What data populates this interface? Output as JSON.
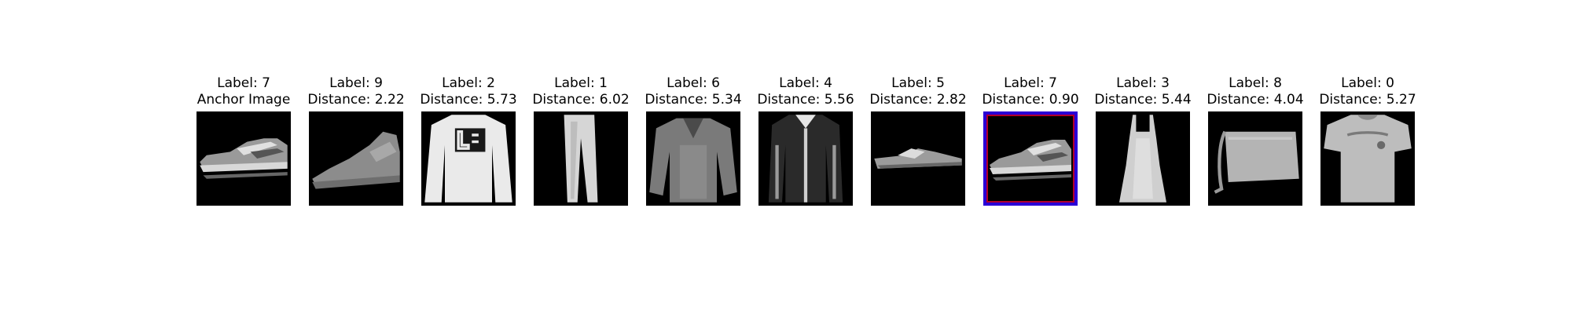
{
  "figure": {
    "panels": [
      {
        "label_text": "Label: 7",
        "sub_text": "Anchor Image",
        "icon": "sneaker-icon",
        "highlighted": false
      },
      {
        "label_text": "Label: 9",
        "sub_text": "Distance: 2.22",
        "icon": "ankle-boot-icon",
        "highlighted": false
      },
      {
        "label_text": "Label: 2",
        "sub_text": "Distance: 5.73",
        "icon": "pullover-icon",
        "highlighted": false
      },
      {
        "label_text": "Label: 1",
        "sub_text": "Distance: 6.02",
        "icon": "trouser-icon",
        "highlighted": false
      },
      {
        "label_text": "Label: 6",
        "sub_text": "Distance: 5.34",
        "icon": "shirt-icon",
        "highlighted": false
      },
      {
        "label_text": "Label: 4",
        "sub_text": "Distance: 5.56",
        "icon": "coat-icon",
        "highlighted": false
      },
      {
        "label_text": "Label: 5",
        "sub_text": "Distance: 2.82",
        "icon": "sandal-icon",
        "highlighted": false
      },
      {
        "label_text": "Label: 7",
        "sub_text": "Distance: 0.90",
        "icon": "sneaker-icon",
        "highlighted": true,
        "highlight_color": "#2a00d6"
      },
      {
        "label_text": "Label: 3",
        "sub_text": "Distance: 5.44",
        "icon": "dress-icon",
        "highlighted": false
      },
      {
        "label_text": "Label: 8",
        "sub_text": "Distance: 4.04",
        "icon": "bag-icon",
        "highlighted": false
      },
      {
        "label_text": "Label: 0",
        "sub_text": "Distance: 5.27",
        "icon": "tshirt-icon",
        "highlighted": false
      }
    ]
  }
}
